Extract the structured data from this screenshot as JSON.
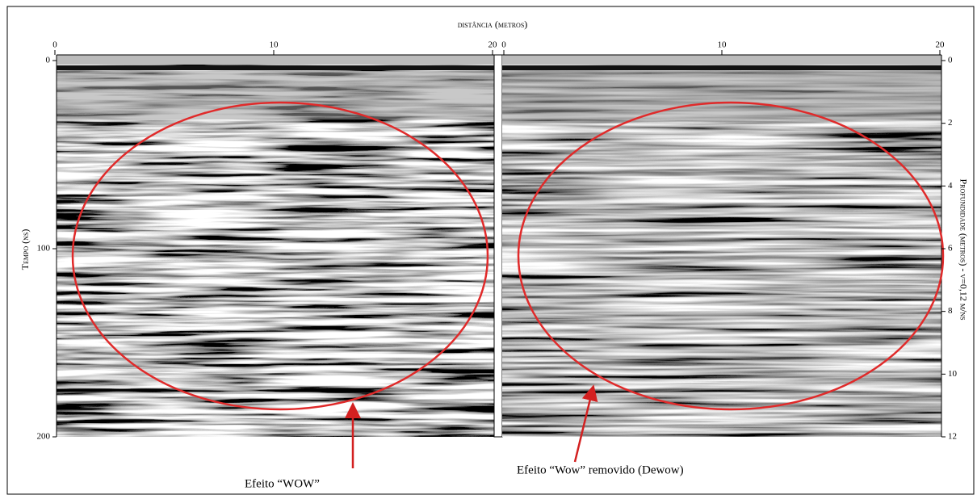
{
  "title": "distância (metros)",
  "left_panel": {
    "x_ticks": [
      0,
      10,
      20
    ]
  },
  "right_panel": {
    "x_ticks": [
      0,
      10,
      20
    ]
  },
  "time_axis": {
    "label": "Tempo (ns)",
    "ticks": [
      0,
      100,
      200
    ]
  },
  "depth_axis": {
    "label": "Profundidade (metros) - v=0,12 m/ns",
    "ticks": [
      0,
      2,
      4,
      6,
      8,
      10,
      12
    ]
  },
  "annotations": [
    "Efeito “WOW”",
    "Efeito “Wow” removido (Dewow)"
  ]
}
